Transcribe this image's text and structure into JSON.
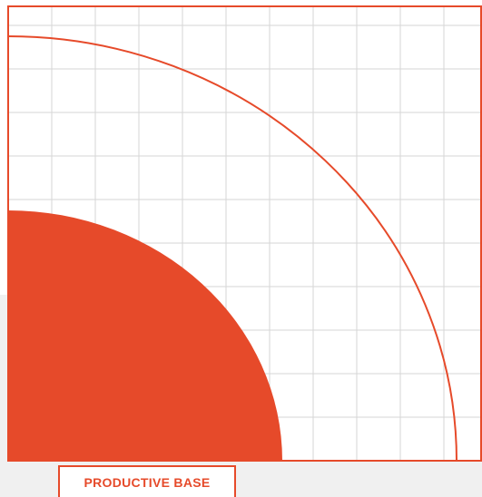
{
  "colors": {
    "accent": "#e64a2a",
    "grid_line": "#d6d6d6",
    "background": "#ffffff",
    "background_lower": "#f0f0f0"
  },
  "label": {
    "text": "PRODUCTIVE BASE"
  }
}
